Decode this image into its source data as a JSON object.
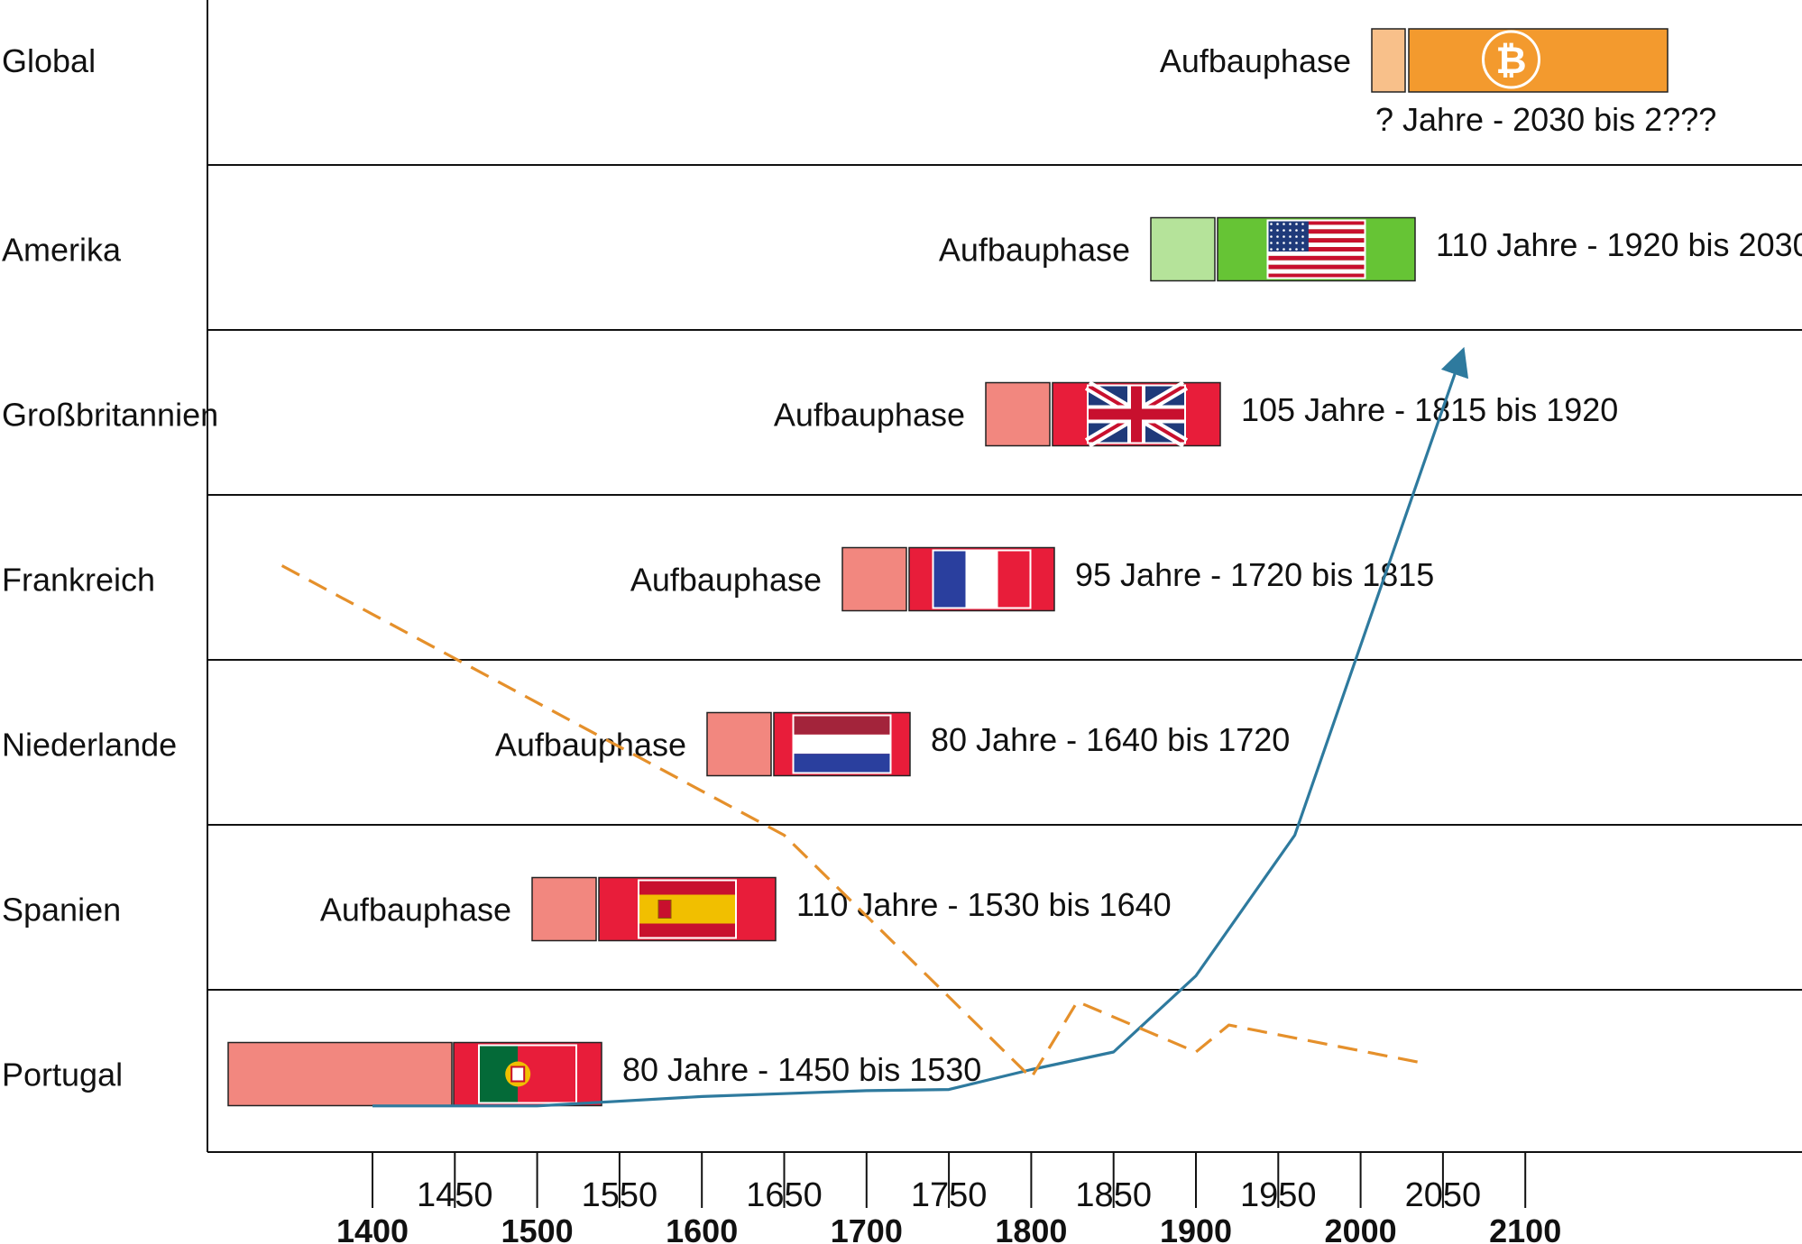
{
  "chart_data": {
    "type": "timeline",
    "rows": [
      {
        "label": "Global",
        "phase_label": "Aufbauphase",
        "period": "? Jahre  - 2030 bis 2???",
        "color": "#F39A2E",
        "light": "#F8C08A",
        "flag": "bitcoin-icon"
      },
      {
        "label": "Amerika",
        "phase_label": "Aufbauphase",
        "period": "110 Jahre  - 1920 bis 2030",
        "color": "#66C435",
        "light": "#B5E39A",
        "flag": "us-flag-icon"
      },
      {
        "label": "Großbritannien",
        "phase_label": "Aufbauphase",
        "period": "105 Jahre  - 1815 bis 1920",
        "color": "#E81D3A",
        "light": "#F2877F",
        "flag": "uk-flag-icon"
      },
      {
        "label": "Frankreich",
        "phase_label": "Aufbauphase",
        "period": "95 Jahre  - 1720 bis 1815",
        "color": "#E81D3A",
        "light": "#F2877F",
        "flag": "france-flag-icon"
      },
      {
        "label": "Niederlande",
        "phase_label": "Aufbauphase",
        "period": "80 Jahre  - 1640 bis 1720",
        "color": "#E81D3A",
        "light": "#F2877F",
        "flag": "netherlands-flag-icon"
      },
      {
        "label": "Spanien",
        "phase_label": "Aufbauphase",
        "period": "110 Jahre  - 1530 bis 1640",
        "color": "#E81D3A",
        "light": "#F2877F",
        "flag": "spain-flag-icon"
      },
      {
        "label": "Portugal",
        "phase_label": "",
        "period": "80 Jahre  - 1450 bis 1530",
        "color": "#E81D3A",
        "light": "#F2877F",
        "flag": "portugal-flag-icon"
      }
    ],
    "x_ticks_bottom": [
      "1400",
      "1500",
      "1600",
      "1700",
      "1800",
      "1900",
      "2000",
      "2100"
    ],
    "x_ticks_top": [
      "1450",
      "1550",
      "1650",
      "1750",
      "1850",
      "1950",
      "2050"
    ],
    "series": [
      {
        "style": "solid-arrow",
        "color": "#2E7A9E",
        "points": [
          [
            1400,
            4
          ],
          [
            1500,
            4
          ],
          [
            1600,
            12
          ],
          [
            1700,
            17
          ],
          [
            1750,
            18
          ],
          [
            1800,
            35
          ],
          [
            1850,
            50
          ],
          [
            1900,
            115
          ],
          [
            1960,
            235
          ],
          [
            2060,
            640
          ]
        ]
      },
      {
        "style": "dashed",
        "color": "#E5902B",
        "points": [
          [
            1345,
            465
          ],
          [
            1650,
            235
          ],
          [
            1800,
            28
          ],
          [
            1828,
            93
          ],
          [
            1900,
            50
          ],
          [
            1920,
            73
          ],
          [
            2040,
            40
          ]
        ]
      }
    ],
    "grid": false
  }
}
